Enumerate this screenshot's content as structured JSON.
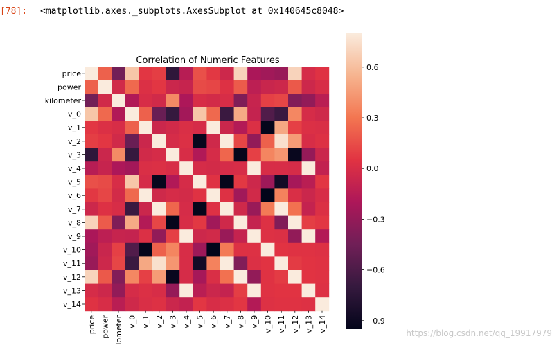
{
  "cell": {
    "prompt": "[78]:",
    "output": "<matplotlib.axes._subplots.AxesSubplot at 0x140645c8048>"
  },
  "watermark": "https://blog.csdn.net/qq_19917979",
  "chart_data": {
    "type": "heatmap",
    "title": "Correlation  of Numeric Features",
    "labels": [
      "price",
      "power",
      "kilometer",
      "v_0",
      "v_1",
      "v_2",
      "v_3",
      "v_4",
      "v_5",
      "v_6",
      "v_7",
      "v_8",
      "v_9",
      "v_10",
      "v_11",
      "v_12",
      "v_13",
      "v_14"
    ],
    "matrix": [
      [
        1.0,
        0.22,
        -0.44,
        0.63,
        0.06,
        0.09,
        -0.73,
        -0.15,
        0.16,
        0.07,
        -0.05,
        0.69,
        -0.21,
        -0.25,
        -0.28,
        0.69,
        -0.01,
        0.04
      ],
      [
        0.22,
        1.0,
        -0.03,
        0.25,
        0.02,
        0.06,
        -0.06,
        -0.08,
        0.14,
        0.12,
        0.03,
        0.2,
        -0.13,
        -0.07,
        -0.05,
        0.19,
        -0.05,
        0.0
      ],
      [
        -0.44,
        -0.03,
        1.0,
        -0.18,
        0.0,
        -0.03,
        0.38,
        -0.2,
        0.0,
        -0.02,
        0.0,
        -0.39,
        -0.08,
        0.1,
        0.12,
        -0.38,
        -0.31,
        -0.14
      ],
      [
        0.63,
        0.25,
        -0.18,
        1.0,
        0.22,
        -0.48,
        -0.7,
        -0.24,
        0.63,
        0.25,
        -0.68,
        0.51,
        -0.09,
        -0.58,
        -0.68,
        0.37,
        -0.01,
        -0.04
      ],
      [
        0.06,
        0.02,
        0.0,
        0.22,
        1.0,
        -0.06,
        -0.03,
        0.01,
        -0.01,
        0.8,
        -0.06,
        -0.17,
        0.02,
        -0.94,
        0.5,
        0.1,
        0.02,
        0.01
      ],
      [
        0.09,
        0.06,
        -0.03,
        -0.48,
        -0.06,
        1.0,
        -0.01,
        0.02,
        -0.93,
        -0.04,
        0.82,
        0.12,
        -0.31,
        0.22,
        0.75,
        0.45,
        0.0,
        0.03
      ],
      [
        -0.73,
        -0.06,
        0.38,
        -0.7,
        -0.03,
        -0.01,
        1.0,
        0.0,
        -0.18,
        -0.01,
        0.24,
        -0.94,
        0.1,
        0.36,
        0.43,
        -0.92,
        -0.3,
        -0.06
      ],
      [
        -0.15,
        -0.08,
        -0.2,
        -0.24,
        0.01,
        0.02,
        0.0,
        1.0,
        -0.01,
        -0.02,
        -0.01,
        0.0,
        0.88,
        0.0,
        0.0,
        -0.01,
        0.97,
        -0.1
      ],
      [
        0.16,
        0.14,
        0.0,
        0.63,
        -0.01,
        -0.93,
        -0.18,
        -0.01,
        1.0,
        0.04,
        -0.94,
        0.07,
        -0.05,
        -0.26,
        -0.87,
        -0.23,
        -0.14,
        0.06
      ],
      [
        0.07,
        0.12,
        -0.02,
        0.25,
        0.8,
        -0.04,
        -0.01,
        -0.02,
        0.04,
        1.0,
        0.03,
        -0.25,
        -0.03,
        -0.95,
        0.35,
        0.01,
        -0.06,
        0.0
      ],
      [
        -0.05,
        0.03,
        0.0,
        -0.68,
        -0.06,
        0.82,
        0.24,
        -0.01,
        -0.94,
        0.03,
        1.0,
        -0.04,
        -0.28,
        0.32,
        0.84,
        0.28,
        -0.09,
        0.02
      ],
      [
        0.69,
        0.2,
        -0.39,
        0.51,
        -0.17,
        0.12,
        -0.94,
        0.0,
        0.07,
        -0.25,
        -0.04,
        1.0,
        -0.09,
        0.03,
        -0.38,
        0.87,
        0.09,
        0.06
      ],
      [
        -0.21,
        -0.13,
        -0.08,
        -0.09,
        0.02,
        -0.31,
        0.1,
        0.88,
        -0.05,
        -0.03,
        -0.28,
        -0.09,
        1.0,
        0.03,
        0.02,
        -0.31,
        0.91,
        -0.17
      ],
      [
        -0.25,
        -0.07,
        0.1,
        -0.58,
        -0.94,
        0.22,
        0.36,
        0.0,
        -0.26,
        -0.95,
        0.32,
        0.03,
        0.03,
        1.0,
        0.05,
        0.04,
        0.04,
        0.03
      ],
      [
        -0.28,
        -0.05,
        0.12,
        -0.68,
        0.5,
        0.75,
        0.43,
        0.0,
        -0.87,
        0.35,
        0.84,
        -0.38,
        0.02,
        0.05,
        1.0,
        0.08,
        0.05,
        0.04
      ],
      [
        0.69,
        0.19,
        -0.38,
        0.37,
        0.1,
        0.45,
        -0.92,
        -0.01,
        -0.23,
        0.01,
        0.28,
        0.87,
        -0.31,
        0.04,
        0.08,
        1.0,
        0.05,
        0.04
      ],
      [
        -0.01,
        -0.05,
        -0.31,
        -0.01,
        0.02,
        0.0,
        -0.3,
        0.97,
        -0.14,
        -0.06,
        -0.09,
        0.09,
        0.91,
        0.04,
        0.05,
        0.05,
        1.0,
        0.03
      ],
      [
        0.04,
        0.0,
        -0.14,
        -0.04,
        0.01,
        0.03,
        -0.06,
        -0.1,
        0.06,
        0.0,
        0.02,
        0.06,
        -0.17,
        0.03,
        0.04,
        0.04,
        0.03,
        1.0
      ]
    ],
    "colorbar": {
      "min": -0.95,
      "max": 0.8,
      "ticks": [
        0.6,
        0.3,
        0.0,
        -0.3,
        -0.6,
        -0.9
      ],
      "tick_labels": [
        "0.6",
        "0.3",
        "0.0",
        "−0.3",
        "−0.6",
        "−0.9"
      ],
      "colormap": "rocket",
      "stops": [
        "#03051a",
        "#35193e",
        "#701f57",
        "#ad1759",
        "#e13342",
        "#f37651",
        "#f6b48f",
        "#faebdd"
      ]
    }
  }
}
